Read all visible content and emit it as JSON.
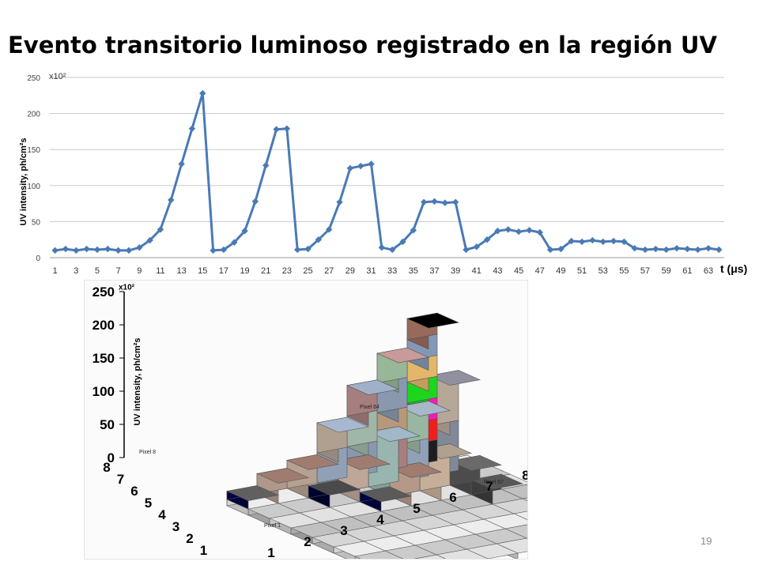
{
  "slide": {
    "title": "Evento transitorio luminoso registrado en la región UV",
    "page_number": "19"
  },
  "chart_data": [
    {
      "type": "line",
      "ylabel": "UV intensity, ph/cm²s",
      "y_multiplier": "x10²",
      "xlabel": "t (μs)",
      "ylim": [
        0,
        250
      ],
      "yticks": [
        0,
        50,
        100,
        150,
        200,
        250
      ],
      "xticks": [
        1,
        3,
        5,
        7,
        9,
        11,
        13,
        15,
        17,
        19,
        21,
        23,
        25,
        27,
        29,
        31,
        33,
        35,
        37,
        39,
        41,
        43,
        45,
        47,
        49,
        51,
        53,
        55,
        57,
        59,
        61,
        63
      ],
      "grid": "horizontal",
      "color": "#4a7ab5",
      "marker": "diamond",
      "x": [
        1,
        2,
        3,
        4,
        5,
        6,
        7,
        8,
        9,
        10,
        11,
        12,
        13,
        14,
        15,
        16,
        17,
        18,
        19,
        20,
        21,
        22,
        23,
        24,
        25,
        26,
        27,
        28,
        29,
        30,
        31,
        32,
        33,
        34,
        35,
        36,
        37,
        38,
        39,
        40,
        41,
        42,
        43,
        44,
        45,
        46,
        47,
        48,
        49,
        50,
        51,
        52,
        53,
        54,
        55,
        56,
        57,
        58,
        59,
        60,
        61,
        62,
        63,
        64
      ],
      "values": [
        10,
        12,
        10,
        12,
        11,
        12,
        10,
        10,
        14,
        24,
        39,
        80,
        130,
        179,
        228,
        10,
        11,
        21,
        37,
        78,
        128,
        178,
        179,
        11,
        12,
        25,
        39,
        77,
        124,
        127,
        130,
        14,
        11,
        22,
        38,
        77,
        78,
        76,
        77,
        11,
        15,
        25,
        37,
        39,
        36,
        38,
        35,
        11,
        12,
        23,
        22,
        24,
        22,
        23,
        22,
        13,
        11,
        12,
        11,
        13,
        12,
        11,
        13,
        11
      ]
    },
    {
      "type": "bar",
      "variant": "3d-lego",
      "ylabel": "UV intensity, ph/cm²s",
      "y_multiplier": "x10²",
      "yticks": [
        "250",
        "200",
        "150",
        "100",
        "50",
        "0"
      ],
      "row_ticks": [
        "8",
        "7",
        "6",
        "5",
        "4",
        "3",
        "2",
        "1"
      ],
      "col_ticks": [
        "1",
        "2",
        "3",
        "4",
        "5",
        "6",
        "7",
        "8"
      ],
      "pixel_labels": [
        "Pixel 8",
        "Pixel 64",
        "Pixel 57",
        "Pixel 1"
      ]
    }
  ]
}
